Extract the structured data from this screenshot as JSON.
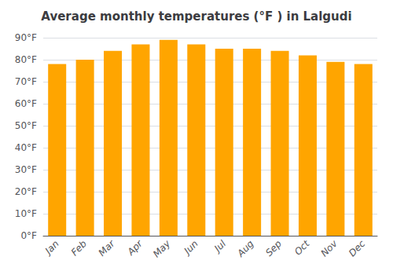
{
  "chart_data": {
    "type": "bar",
    "title": "Average monthly temperatures (°F ) in Lalgudi",
    "categories": [
      "Jan",
      "Feb",
      "Mar",
      "Apr",
      "May",
      "Jun",
      "Jul",
      "Aug",
      "Sep",
      "Oct",
      "Nov",
      "Dec"
    ],
    "values": [
      78,
      80,
      84,
      87,
      89,
      87,
      85,
      85,
      84,
      82,
      79,
      78
    ],
    "color": "#FFA500",
    "ylim": [
      0,
      90
    ],
    "yticks": [
      {
        "value": 0,
        "label": "0°F"
      },
      {
        "value": 10,
        "label": "10°F"
      },
      {
        "value": 20,
        "label": "20°F"
      },
      {
        "value": 30,
        "label": "30°F"
      },
      {
        "value": 40,
        "label": "40°F"
      },
      {
        "value": 50,
        "label": "50°F"
      },
      {
        "value": 60,
        "label": "60°F"
      },
      {
        "value": 70,
        "label": "70°F"
      },
      {
        "value": 80,
        "label": "80°F"
      },
      {
        "value": 90,
        "label": "90°F"
      }
    ],
    "grid": true
  }
}
